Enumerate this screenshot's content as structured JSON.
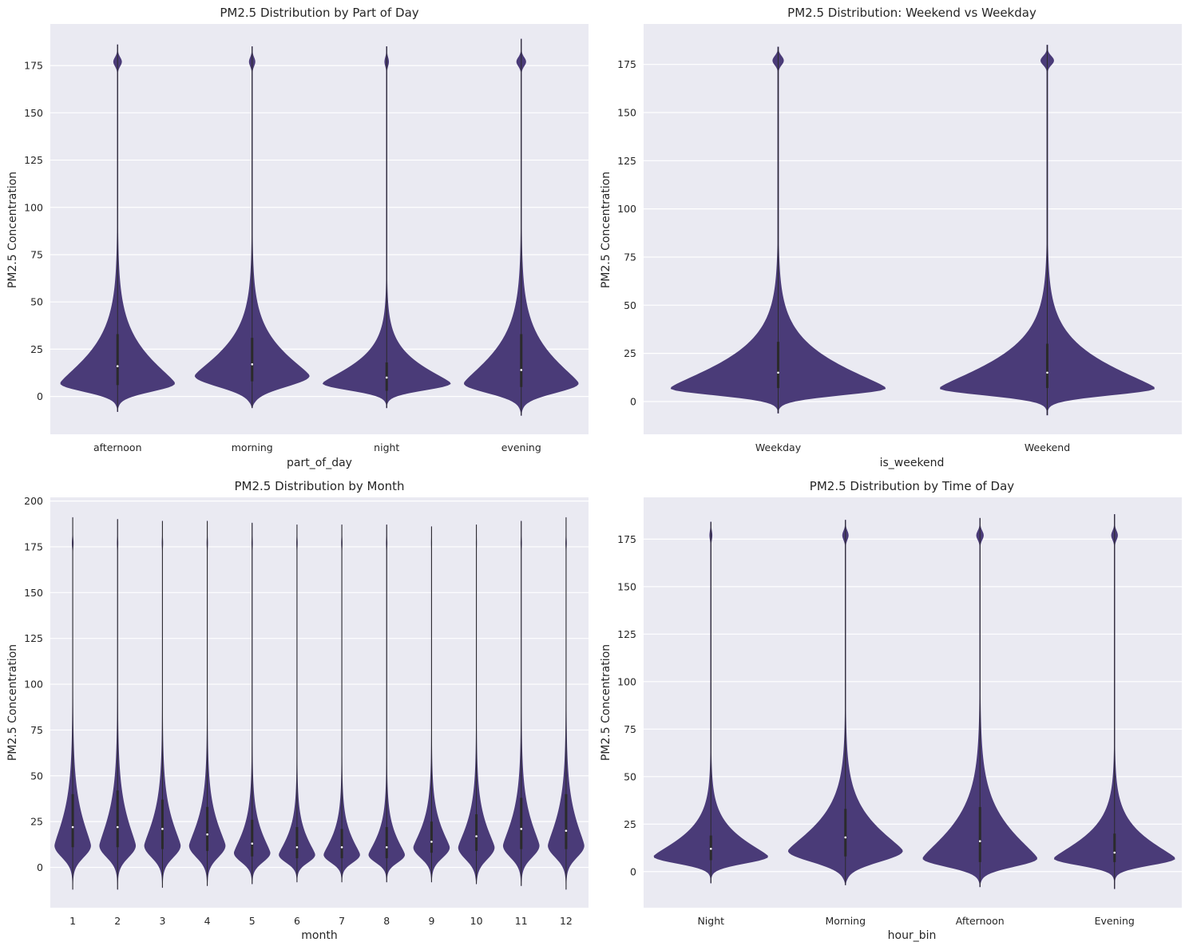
{
  "colors": {
    "violin": "#4a3b78",
    "background": "#eaeaf2",
    "grid": "#ffffff",
    "inner": "#2b2b2b"
  },
  "chart_data": [
    {
      "type": "violin",
      "title": "PM2.5 Distribution by Part of Day",
      "xlabel": "part_of_day",
      "ylabel": "PM2.5 Concentration",
      "ylim": [
        -20,
        197
      ],
      "yticks": [
        0,
        25,
        50,
        75,
        100,
        125,
        150,
        175
      ],
      "categories": [
        "afternoon",
        "morning",
        "night",
        "evening"
      ],
      "distributions": [
        {
          "min": -8,
          "max": 186,
          "mode": 7,
          "width": 0.85,
          "upper": 21,
          "lower": 6,
          "q1": 6,
          "median": 16,
          "q3": 33,
          "bump": 0.07
        },
        {
          "min": -6,
          "max": 185,
          "mode": 11,
          "width": 0.85,
          "upper": 19,
          "lower": 8,
          "q1": 8,
          "median": 17,
          "q3": 31,
          "bump": 0.05
        },
        {
          "min": -6,
          "max": 185,
          "mode": 7,
          "width": 0.95,
          "upper": 14,
          "lower": 5,
          "q1": 3,
          "median": 10,
          "q3": 18,
          "bump": 0.03
        },
        {
          "min": -10,
          "max": 189,
          "mode": 7,
          "width": 0.85,
          "upper": 21,
          "lower": 7,
          "q1": 5,
          "median": 14,
          "q3": 33,
          "bump": 0.08
        }
      ]
    },
    {
      "type": "violin",
      "title": "PM2.5 Distribution: Weekend vs Weekday",
      "xlabel": "is_weekend",
      "ylabel": "PM2.5 Concentration",
      "ylim": [
        -17,
        196
      ],
      "yticks": [
        0,
        25,
        50,
        75,
        100,
        125,
        150,
        175
      ],
      "categories": [
        "Weekday",
        "Weekend"
      ],
      "distributions": [
        {
          "min": -6,
          "max": 184,
          "mode": 7,
          "width": 0.8,
          "upper": 19,
          "lower": 5,
          "q1": 7,
          "median": 15,
          "q3": 31,
          "bump": 0.05
        },
        {
          "min": -7,
          "max": 185,
          "mode": 7,
          "width": 0.8,
          "upper": 19,
          "lower": 5,
          "q1": 7,
          "median": 15,
          "q3": 30,
          "bump": 0.06
        }
      ]
    },
    {
      "type": "violin",
      "title": "PM2.5 Distribution by Month",
      "xlabel": "month",
      "ylabel": "PM2.5 Concentration",
      "ylim": [
        -22,
        202
      ],
      "yticks": [
        0,
        25,
        50,
        75,
        100,
        125,
        150,
        175,
        200
      ],
      "categories": [
        "1",
        "2",
        "3",
        "4",
        "5",
        "6",
        "7",
        "8",
        "9",
        "10",
        "11",
        "12"
      ],
      "distributions": [
        {
          "min": -12,
          "max": 191,
          "mode": 12,
          "width": 0.8,
          "upper": 22,
          "lower": 9,
          "q1": 11,
          "median": 22,
          "q3": 40,
          "bump": 0.03
        },
        {
          "min": -12,
          "max": 190,
          "mode": 12,
          "width": 0.8,
          "upper": 22,
          "lower": 9,
          "q1": 11,
          "median": 22,
          "q3": 42,
          "bump": 0.02
        },
        {
          "min": -11,
          "max": 189,
          "mode": 12,
          "width": 0.8,
          "upper": 20,
          "lower": 9,
          "q1": 10,
          "median": 21,
          "q3": 37,
          "bump": 0.02
        },
        {
          "min": -10,
          "max": 189,
          "mode": 12,
          "width": 0.8,
          "upper": 19,
          "lower": 9,
          "q1": 9,
          "median": 18,
          "q3": 33,
          "bump": 0.02
        },
        {
          "min": -9,
          "max": 188,
          "mode": 8,
          "width": 0.8,
          "upper": 16,
          "lower": 7,
          "q1": 6,
          "median": 13,
          "q3": 26,
          "bump": 0.02
        },
        {
          "min": -8,
          "max": 187,
          "mode": 7,
          "width": 0.8,
          "upper": 14,
          "lower": 6,
          "q1": 5,
          "median": 11,
          "q3": 22,
          "bump": 0.02
        },
        {
          "min": -8,
          "max": 187,
          "mode": 7,
          "width": 0.8,
          "upper": 14,
          "lower": 6,
          "q1": 5,
          "median": 11,
          "q3": 21,
          "bump": 0.02
        },
        {
          "min": -8,
          "max": 187,
          "mode": 7,
          "width": 0.8,
          "upper": 14,
          "lower": 6,
          "q1": 5,
          "median": 11,
          "q3": 22,
          "bump": 0.02
        },
        {
          "min": -8,
          "max": 186,
          "mode": 11,
          "width": 0.8,
          "upper": 16,
          "lower": 8,
          "q1": 8,
          "median": 14,
          "q3": 25,
          "bump": 0.01
        },
        {
          "min": -9,
          "max": 187,
          "mode": 11,
          "width": 0.8,
          "upper": 18,
          "lower": 9,
          "q1": 9,
          "median": 17,
          "q3": 29,
          "bump": 0.01
        },
        {
          "min": -10,
          "max": 189,
          "mode": 12,
          "width": 0.8,
          "upper": 20,
          "lower": 9,
          "q1": 10,
          "median": 21,
          "q3": 38,
          "bump": 0.02
        },
        {
          "min": -12,
          "max": 191,
          "mode": 12,
          "width": 0.8,
          "upper": 21,
          "lower": 9,
          "q1": 10,
          "median": 20,
          "q3": 40,
          "bump": 0.02
        }
      ]
    },
    {
      "type": "violin",
      "title": "PM2.5 Distribution by Time of Day",
      "xlabel": "hour_bin",
      "ylabel": "PM2.5 Concentration",
      "ylim": [
        -19,
        197
      ],
      "yticks": [
        0,
        25,
        50,
        75,
        100,
        125,
        150,
        175
      ],
      "categories": [
        "Night",
        "Morning",
        "Afternoon",
        "Evening"
      ],
      "distributions": [
        {
          "min": -6,
          "max": 184,
          "mode": 8,
          "width": 0.85,
          "upper": 14,
          "lower": 5,
          "q1": 6,
          "median": 12,
          "q3": 19,
          "bump": 0.02
        },
        {
          "min": -7,
          "max": 185,
          "mode": 11,
          "width": 0.85,
          "upper": 19,
          "lower": 8,
          "q1": 8,
          "median": 18,
          "q3": 33,
          "bump": 0.05
        },
        {
          "min": -8,
          "max": 186,
          "mode": 7,
          "width": 0.85,
          "upper": 22,
          "lower": 6,
          "q1": 5,
          "median": 16,
          "q3": 34,
          "bump": 0.06
        },
        {
          "min": -9,
          "max": 188,
          "mode": 7,
          "width": 0.9,
          "upper": 15,
          "lower": 5,
          "q1": 5,
          "median": 10,
          "q3": 20,
          "bump": 0.05
        }
      ]
    }
  ]
}
